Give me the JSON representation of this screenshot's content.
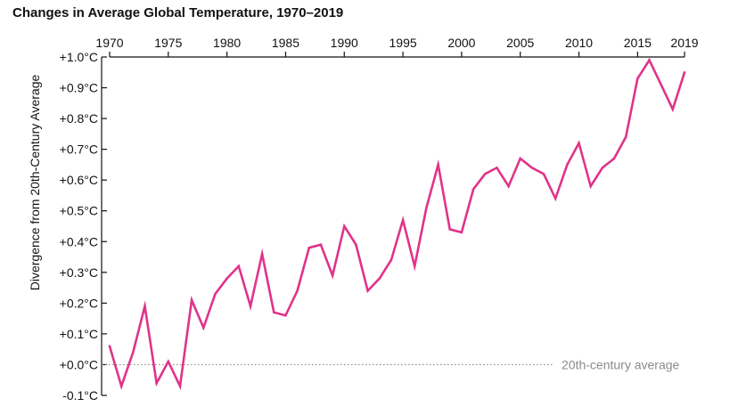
{
  "chart_data": {
    "type": "line",
    "title": "Changes in Average Global Temperature, 1970–2019",
    "ylabel": "Divergence from 20th-Century Average",
    "xlabel": "",
    "x_ticks": [
      "1970",
      "1975",
      "1980",
      "1985",
      "1990",
      "1995",
      "2000",
      "2005",
      "2010",
      "2015",
      "2019"
    ],
    "y_ticks": [
      "+1.0°C",
      "+0.9°C",
      "+0.8°C",
      "+0.7°C",
      "+0.6°C",
      "+0.5°C",
      "+0.4°C",
      "+0.3°C",
      "+0.2°C",
      "+0.1°C",
      "+0.0°C",
      "-0.1°C"
    ],
    "xlim": [
      1970,
      2019
    ],
    "ylim": [
      -0.1,
      1.0
    ],
    "x_axis_position": "top",
    "grid": false,
    "series_color": "#e0338a",
    "reference_line": {
      "value": 0.0,
      "label": "20th-century average",
      "color": "#8a8a8a"
    },
    "series": [
      {
        "x": [
          1970,
          1971,
          1972,
          1973,
          1974,
          1975,
          1976,
          1977,
          1978,
          1979,
          1980,
          1981,
          1982,
          1983,
          1984,
          1985,
          1986,
          1987,
          1988,
          1989,
          1990,
          1991,
          1992,
          1993,
          1994,
          1995,
          1996,
          1997,
          1998,
          1999,
          2000,
          2001,
          2002,
          2003,
          2004,
          2005,
          2006,
          2007,
          2008,
          2009,
          2010,
          2011,
          2012,
          2013,
          2014,
          2015,
          2016,
          2017,
          2018,
          2019
        ],
        "values": [
          0.06,
          -0.07,
          0.04,
          0.19,
          -0.06,
          0.01,
          -0.07,
          0.21,
          0.12,
          0.23,
          0.28,
          0.32,
          0.19,
          0.36,
          0.17,
          0.16,
          0.24,
          0.38,
          0.39,
          0.29,
          0.45,
          0.39,
          0.24,
          0.28,
          0.34,
          0.47,
          0.32,
          0.51,
          0.65,
          0.44,
          0.43,
          0.57,
          0.62,
          0.64,
          0.58,
          0.67,
          0.64,
          0.62,
          0.54,
          0.65,
          0.72,
          0.58,
          0.64,
          0.67,
          0.74,
          0.93,
          0.99,
          0.91,
          0.83,
          0.95
        ]
      }
    ]
  }
}
